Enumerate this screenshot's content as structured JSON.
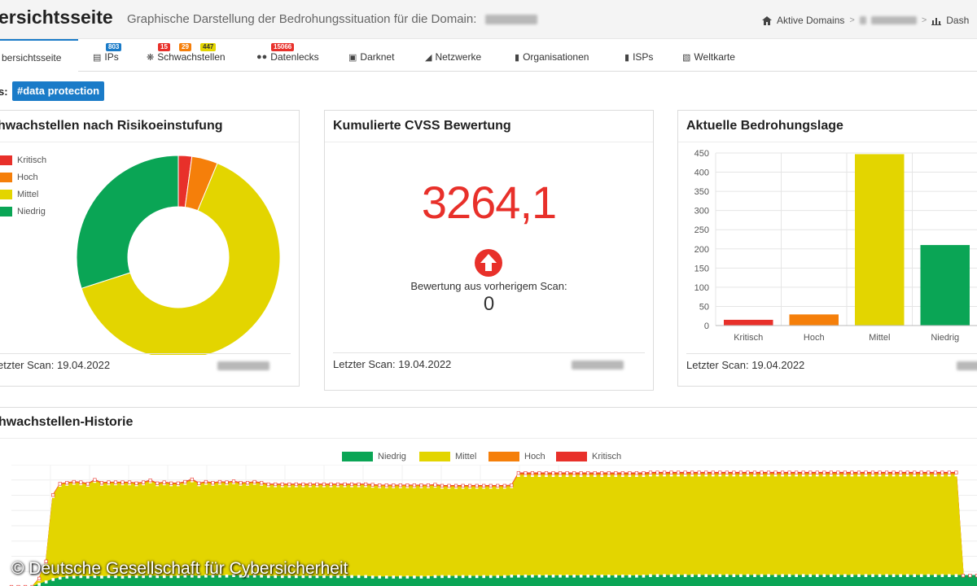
{
  "header": {
    "title": "ersichtsseite",
    "subtitle": "Graphische Darstellung der Bedrohungssituation für die Domain:",
    "breadcrumb": {
      "home_label": "Aktive Domains",
      "separator": ">",
      "last_label": "Dash"
    }
  },
  "tabs": [
    {
      "label": "bersichtsseite",
      "icon": "home-icon"
    },
    {
      "label": "IPs",
      "icon": "server-icon",
      "badges": [
        {
          "text": "803",
          "color": "#1a7bc8"
        }
      ]
    },
    {
      "label": "Schwachstellen",
      "icon": "bug-icon",
      "badges": [
        {
          "text": "15",
          "color": "#e8302a"
        },
        {
          "text": "29",
          "color": "#f57f0a"
        },
        {
          "text": "447",
          "color": "#e3d500"
        }
      ]
    },
    {
      "label": "Datenlecks",
      "icon": "users-icon",
      "badges": [
        {
          "text": "15066",
          "color": "#e8302a"
        }
      ]
    },
    {
      "label": "Darknet",
      "icon": "lock-icon"
    },
    {
      "label": "Netzwerke",
      "icon": "sitemap-icon"
    },
    {
      "label": "Organisationen",
      "icon": "building-icon"
    },
    {
      "label": "ISPs",
      "icon": "server-rack-icon"
    },
    {
      "label": "Weltkarte",
      "icon": "map-icon"
    }
  ],
  "tags": {
    "label": "s:",
    "chip": "#data protection"
  },
  "colors": {
    "kritisch": "#e8302a",
    "hoch": "#f57f0a",
    "mittel": "#e3d500",
    "niedrig": "#0aa555",
    "accent": "#1a7bc8"
  },
  "risk_card": {
    "title": "hwachstellen nach Risikoeinstufung",
    "legend": [
      "Kritisch",
      "Hoch",
      "Mittel",
      "Niedrig"
    ],
    "footer": "etzter Scan: 19.04.2022"
  },
  "cvss_card": {
    "title": "Kumulierte CVSS Bewertung",
    "value": "3264,1",
    "prev_label": "Bewertung aus vorherigem Scan:",
    "prev_value": "0",
    "footer": "Letzter Scan: 19.04.2022"
  },
  "threat_card": {
    "title": "Aktuelle Bedrohungslage",
    "footer": "Letzter Scan: 19.04.2022"
  },
  "history": {
    "title": "hwachstellen-Historie",
    "legend": [
      "Niedrig",
      "Mittel",
      "Hoch",
      "Kritisch"
    ]
  },
  "watermark": "© Deutsche Gesellschaft für Cybersicherheit",
  "chart_data": [
    {
      "type": "pie",
      "categories": [
        "Kritisch",
        "Hoch",
        "Mittel",
        "Niedrig"
      ],
      "values": [
        15,
        29,
        447,
        210
      ]
    },
    {
      "type": "bar",
      "categories": [
        "Kritisch",
        "Hoch",
        "Mittel",
        "Niedrig"
      ],
      "values": [
        15,
        29,
        447,
        210
      ],
      "y_ticks": [
        "0",
        "50",
        "100",
        "150",
        "200",
        "250",
        "300",
        "350",
        "400",
        "450"
      ],
      "ylim": [
        0,
        450
      ],
      "grid": true
    },
    {
      "type": "area",
      "stacked": true,
      "series": [
        {
          "name": "Niedrig",
          "values": [
            0,
            0,
            0,
            0,
            5,
            10,
            15,
            18,
            20,
            20,
            21,
            20,
            21,
            20,
            21,
            21,
            20,
            21,
            21,
            21,
            22,
            21,
            21,
            21,
            21,
            22,
            22,
            21,
            22,
            22,
            22,
            22,
            23,
            22,
            22,
            22,
            22,
            21,
            21,
            21,
            21,
            21,
            21,
            21,
            21,
            21,
            21,
            21,
            21,
            21,
            21,
            21,
            20,
            20,
            20,
            20,
            20,
            20,
            20,
            20,
            20,
            21,
            21,
            21,
            21,
            21,
            21,
            21,
            21,
            21,
            21,
            21,
            22,
            22,
            22,
            22,
            22,
            22,
            22,
            22,
            22,
            22,
            22,
            22,
            22,
            22,
            22,
            22,
            22,
            22,
            22,
            22,
            23,
            23,
            23,
            23,
            23,
            23,
            23,
            23,
            23,
            23,
            23,
            23,
            23,
            23,
            23,
            23,
            23,
            23,
            23,
            23,
            23,
            23,
            23,
            23,
            23,
            23,
            23,
            23,
            23,
            23,
            23,
            23,
            23,
            23,
            23,
            23,
            23,
            23,
            23,
            23,
            23,
            23,
            23,
            23,
            23,
            23,
            23,
            23
          ]
        },
        {
          "name": "Mittel",
          "values": [
            0,
            0,
            0,
            0,
            10,
            40,
            170,
            190,
            190,
            192,
            190,
            188,
            195,
            190,
            190,
            190,
            191,
            190,
            188,
            190,
            193,
            188,
            190,
            188,
            188,
            190,
            195,
            188,
            190,
            188,
            190,
            189,
            190,
            188,
            188,
            190,
            188,
            186,
            186,
            186,
            186,
            186,
            186,
            186,
            186,
            186,
            186,
            186,
            186,
            186,
            186,
            186,
            186,
            185,
            185,
            185,
            185,
            185,
            185,
            185,
            185,
            185,
            183,
            183,
            183,
            183,
            183,
            183,
            183,
            183,
            183,
            183,
            183,
            206,
            206,
            206,
            206,
            206,
            206,
            206,
            206,
            206,
            206,
            206,
            206,
            206,
            206,
            206,
            206,
            206,
            206,
            206,
            206,
            206,
            206,
            206,
            206,
            206,
            206,
            206,
            206,
            206,
            206,
            206,
            206,
            206,
            206,
            206,
            206,
            206,
            206,
            206,
            206,
            206,
            206,
            206,
            206,
            206,
            206,
            206,
            206,
            206,
            206,
            206,
            206,
            206,
            206,
            206,
            206,
            206,
            206,
            206,
            206,
            206,
            206,
            206,
            206
          ]
        },
        {
          "name": "Hoch",
          "values": [
            0,
            0,
            0,
            0,
            1,
            1,
            2,
            2,
            2,
            2,
            2,
            2,
            2,
            2,
            2,
            2,
            2,
            2,
            2,
            2,
            2,
            2,
            2,
            2,
            2,
            2,
            2,
            2,
            2,
            2,
            2,
            2,
            2,
            2,
            2,
            2,
            2,
            2,
            2,
            2,
            2,
            2,
            2,
            2,
            2,
            2,
            2,
            2,
            2,
            2,
            2,
            2,
            2,
            2,
            2,
            2,
            2,
            2,
            2,
            2,
            2,
            2,
            2,
            2,
            2,
            2,
            2,
            2,
            2,
            2,
            2,
            2,
            2,
            3,
            3,
            3,
            3,
            3,
            3,
            3,
            3,
            3,
            3,
            3,
            3,
            3,
            3,
            3,
            3,
            3,
            3,
            3,
            3,
            3,
            3,
            3,
            3,
            3,
            3,
            3,
            3,
            3,
            3,
            3,
            3,
            3,
            3,
            3,
            3,
            3,
            3,
            3,
            3,
            3,
            3,
            3,
            3,
            3,
            3,
            3,
            3,
            3,
            3,
            3,
            3,
            3,
            3,
            3,
            3,
            3,
            3,
            3,
            3,
            3,
            3,
            3,
            3
          ]
        },
        {
          "name": "Kritisch",
          "values": [
            0,
            0,
            0,
            0,
            1,
            1,
            1,
            1,
            1,
            1,
            1,
            1,
            1,
            1,
            1,
            1,
            1,
            1,
            1,
            1,
            1,
            1,
            1,
            1,
            1,
            1,
            1,
            1,
            1,
            1,
            1,
            1,
            1,
            1,
            1,
            1,
            1,
            1,
            1,
            1,
            1,
            1,
            1,
            1,
            1,
            1,
            1,
            1,
            1,
            1,
            1,
            1,
            1,
            1,
            1,
            1,
            1,
            1,
            1,
            1,
            1,
            1,
            1,
            1,
            1,
            1,
            1,
            1,
            1,
            1,
            1,
            1,
            1,
            2,
            2,
            2,
            2,
            2,
            2,
            2,
            2,
            2,
            2,
            2,
            2,
            2,
            2,
            2,
            2,
            2,
            2,
            2,
            2,
            2,
            2,
            2,
            2,
            2,
            2,
            2,
            2,
            2,
            2,
            2,
            2,
            2,
            2,
            2,
            2,
            2,
            2,
            2,
            2,
            2,
            2,
            2,
            2,
            2,
            2,
            2,
            2,
            2,
            2,
            2,
            2,
            2,
            2,
            2,
            2,
            2,
            2,
            2,
            2,
            2,
            2,
            2,
            2
          ]
        }
      ],
      "legend_position": "top"
    }
  ]
}
